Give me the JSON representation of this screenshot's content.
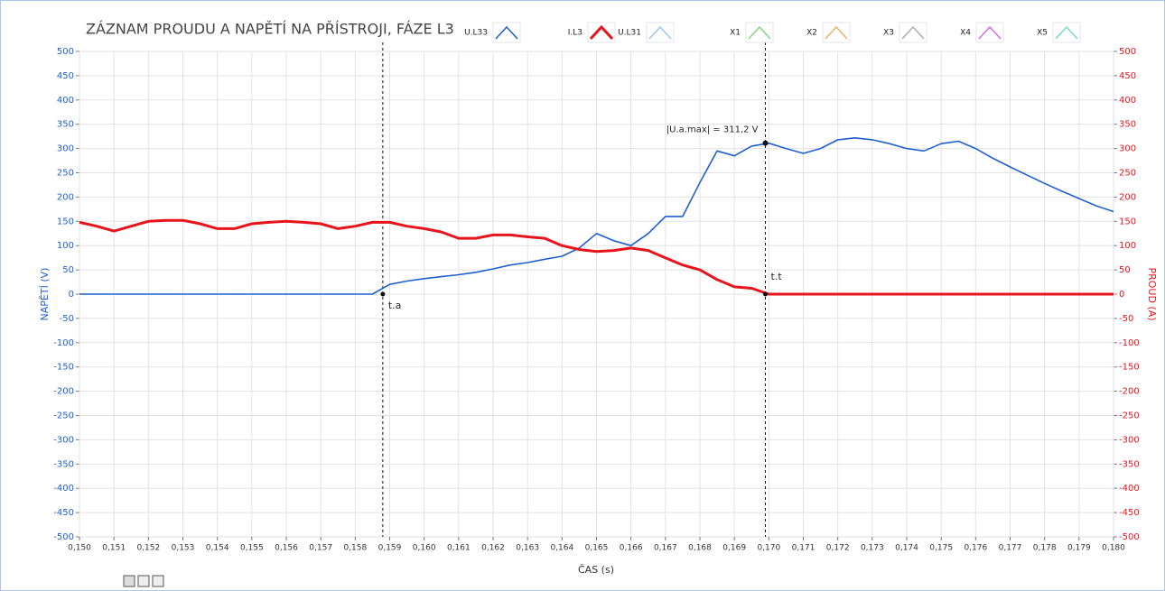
{
  "chart_data": {
    "type": "line",
    "title": "ZÁZNAM PROUDU A NAPĚTÍ NA PŘÍSTROJI, FÁZE L3",
    "x_label": "ČAS (s)",
    "y_label": "NAPĚTÍ (V)",
    "y2_label": "PROUD (A)",
    "x": [
      0.15,
      0.1505,
      0.151,
      0.1515,
      0.152,
      0.1525,
      0.153,
      0.1535,
      0.154,
      0.1545,
      0.155,
      0.1555,
      0.156,
      0.1565,
      0.157,
      0.1575,
      0.158,
      0.1585,
      0.159,
      0.1595,
      0.16,
      0.1605,
      0.161,
      0.1615,
      0.162,
      0.1625,
      0.163,
      0.1635,
      0.164,
      0.1645,
      0.165,
      0.1655,
      0.166,
      0.1665,
      0.167,
      0.1675,
      0.168,
      0.1685,
      0.169,
      0.1695,
      0.17,
      0.1705,
      0.171,
      0.1715,
      0.172,
      0.1725,
      0.173,
      0.1735,
      0.174,
      0.1745,
      0.175,
      0.1755,
      0.176,
      0.1765,
      0.177,
      0.1775,
      0.178,
      0.1785,
      0.179,
      0.1795,
      0.18
    ],
    "series": [
      {
        "name": "U.L33",
        "color": "#1f5fcf",
        "axis": "y",
        "values": [
          0,
          0,
          0,
          0,
          0,
          0,
          0,
          0,
          0,
          0,
          0,
          0,
          0,
          0,
          0,
          0,
          0,
          0,
          20,
          27,
          32,
          36,
          40,
          45,
          52,
          60,
          65,
          72,
          78,
          95,
          125,
          110,
          100,
          125,
          160,
          160,
          230,
          295,
          285,
          305,
          311,
          300,
          290,
          300,
          318,
          322,
          318,
          310,
          300,
          295,
          310,
          315,
          300,
          280,
          262,
          245,
          228,
          212,
          197,
          182,
          170
        ]
      },
      {
        "name": "I.L3",
        "color": "#e8141c",
        "axis": "y2",
        "values": [
          148,
          140,
          130,
          140,
          150,
          152,
          152,
          145,
          135,
          135,
          145,
          148,
          150,
          148,
          145,
          135,
          140,
          148,
          148,
          140,
          135,
          128,
          115,
          115,
          122,
          122,
          118,
          115,
          100,
          92,
          88,
          90,
          95,
          90,
          75,
          60,
          50,
          30,
          15,
          12,
          0,
          0,
          0,
          0,
          0,
          0,
          0,
          0,
          0,
          0,
          0,
          0,
          0,
          0,
          0,
          0,
          0,
          0,
          0,
          0,
          0
        ]
      }
    ],
    "legend_only": [
      {
        "name": "U.L31",
        "color": "#9cc8ef"
      },
      {
        "name": "X1",
        "color": "#8fd08a"
      },
      {
        "name": "X2",
        "color": "#e8b56a"
      },
      {
        "name": "X3",
        "color": "#b0b0b0"
      },
      {
        "name": "X4",
        "color": "#d070e0"
      },
      {
        "name": "X5",
        "color": "#80d8cc"
      }
    ],
    "xlim": [
      0.15,
      0.18
    ],
    "xticks": [
      {
        "value": 0.15,
        "label": "0,150"
      },
      {
        "value": 0.151,
        "label": "0,151"
      },
      {
        "value": 0.152,
        "label": "0,152"
      },
      {
        "value": 0.153,
        "label": "0,153"
      },
      {
        "value": 0.154,
        "label": "0,154"
      },
      {
        "value": 0.155,
        "label": "0,155"
      },
      {
        "value": 0.156,
        "label": "0,156"
      },
      {
        "value": 0.157,
        "label": "0,157"
      },
      {
        "value": 0.158,
        "label": "0,158"
      },
      {
        "value": 0.159,
        "label": "0,159"
      },
      {
        "value": 0.16,
        "label": "0,160"
      },
      {
        "value": 0.161,
        "label": "0,161"
      },
      {
        "value": 0.162,
        "label": "0,162"
      },
      {
        "value": 0.163,
        "label": "0,163"
      },
      {
        "value": 0.164,
        "label": "0,164"
      },
      {
        "value": 0.165,
        "label": "0,165"
      },
      {
        "value": 0.166,
        "label": "0,166"
      },
      {
        "value": 0.167,
        "label": "0,167"
      },
      {
        "value": 0.168,
        "label": "0,168"
      },
      {
        "value": 0.169,
        "label": "0,169"
      },
      {
        "value": 0.17,
        "label": "0,170"
      },
      {
        "value": 0.171,
        "label": "0,171"
      },
      {
        "value": 0.172,
        "label": "0,172"
      },
      {
        "value": 0.173,
        "label": "0,173"
      },
      {
        "value": 0.174,
        "label": "0,174"
      },
      {
        "value": 0.175,
        "label": "0,175"
      },
      {
        "value": 0.176,
        "label": "0,176"
      },
      {
        "value": 0.177,
        "label": "0,177"
      },
      {
        "value": 0.178,
        "label": "0,178"
      },
      {
        "value": 0.179,
        "label": "0,179"
      },
      {
        "value": 0.18,
        "label": "0,180"
      }
    ],
    "ylim": [
      -500,
      500
    ],
    "yticks": [
      500,
      450,
      400,
      350,
      300,
      250,
      200,
      150,
      100,
      50,
      0,
      -50,
      -100,
      -150,
      -200,
      -250,
      -300,
      -350,
      -400,
      -450,
      -500
    ],
    "y2lim": [
      -500,
      500
    ],
    "y2ticks": [
      500,
      450,
      400,
      350,
      300,
      250,
      200,
      150,
      100,
      50,
      0,
      -50,
      -100,
      -150,
      -200,
      -250,
      -300,
      -350,
      -400,
      -450,
      -500
    ],
    "grid": true,
    "cursors": [
      {
        "label": "t.a",
        "x": 0.1588,
        "y": 0
      },
      {
        "label": "t.t",
        "x": 0.1699,
        "y": 0
      }
    ],
    "annotation": {
      "text": "|U.a.max| = 311,2 V",
      "x": 0.1699,
      "y": 311.2
    }
  }
}
